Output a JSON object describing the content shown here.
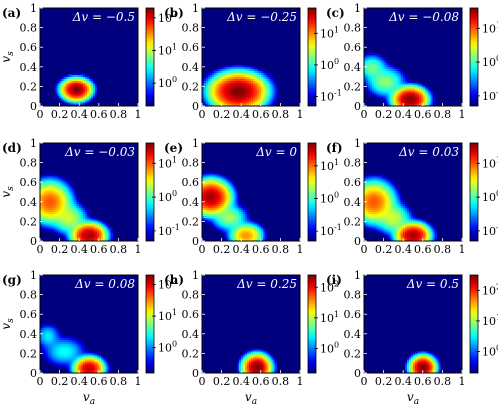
{
  "colormap": [
    "#00007f",
    "#0000ff",
    "#0080ff",
    "#00ffff",
    "#80ff80",
    "#ffff00",
    "#ff8000",
    "#ff0000",
    "#7f0000"
  ],
  "background_color": "#00007f",
  "chart_data": [
    {
      "type": "heatmap",
      "panel_label": "(a)",
      "title": "Δv = −0.5",
      "xlabel": "",
      "ylabel": "v_s",
      "xticks": [
        "0",
        "0.2",
        "0.4",
        "0.6",
        "0.8",
        "1"
      ],
      "yticks": [
        "0",
        "0.2",
        "0.4",
        "0.6",
        "0.8",
        "1"
      ],
      "xlim": [
        0,
        1
      ],
      "ylim": [
        0,
        1
      ],
      "color_scale": "log",
      "colorbar_ticks": [
        "10^2",
        "10^1",
        "10^0"
      ],
      "colorbar_exponents": [
        2,
        1,
        0
      ],
      "colorbar_range": [
        -0.7,
        2.3
      ],
      "peaks": [
        {
          "x": 0.37,
          "y": 0.17,
          "sx": 0.06,
          "sy": 0.045,
          "level": 2.3
        }
      ]
    },
    {
      "type": "heatmap",
      "panel_label": "(b)",
      "title": "Δv = −0.25",
      "xlabel": "",
      "ylabel": "",
      "xticks": [
        "0",
        "0.2",
        "0.4",
        "0.6",
        "0.8",
        "1"
      ],
      "yticks": [
        "0",
        "0.2",
        "0.4",
        "0.6",
        "0.8",
        "1"
      ],
      "xlim": [
        0,
        1
      ],
      "ylim": [
        0,
        1
      ],
      "color_scale": "log",
      "colorbar_ticks": [
        "10^1",
        "10^0",
        "10^-1"
      ],
      "colorbar_exponents": [
        1,
        0,
        -1
      ],
      "colorbar_range": [
        -1.3,
        1.8
      ],
      "peaks": [
        {
          "x": 0.37,
          "y": 0.15,
          "sx": 0.11,
          "sy": 0.075,
          "level": 1.8
        }
      ]
    },
    {
      "type": "heatmap",
      "panel_label": "(c)",
      "title": "Δv = −0.08",
      "xlabel": "",
      "ylabel": "",
      "xticks": [
        "0",
        "0.2",
        "0.4",
        "0.6",
        "0.8",
        "1"
      ],
      "yticks": [
        "0",
        "0.2",
        "0.4",
        "0.6",
        "0.8",
        "1"
      ],
      "xlim": [
        0,
        1
      ],
      "ylim": [
        0,
        1
      ],
      "color_scale": "log",
      "colorbar_ticks": [
        "10^1",
        "10^0",
        "10^-1"
      ],
      "colorbar_exponents": [
        1,
        0,
        -1
      ],
      "colorbar_range": [
        -1.3,
        1.6
      ],
      "peaks": [
        {
          "x": 0.47,
          "y": 0.07,
          "sx": 0.07,
          "sy": 0.05,
          "level": 1.6
        },
        {
          "x": 0.08,
          "y": 0.4,
          "sx": 0.07,
          "sy": 0.06,
          "level": 0.1
        },
        {
          "x": 0.22,
          "y": 0.25,
          "sx": 0.09,
          "sy": 0.07,
          "level": 0.2
        }
      ]
    },
    {
      "type": "heatmap",
      "panel_label": "(d)",
      "title": "Δv = −0.03",
      "xlabel": "",
      "ylabel": "v_s",
      "xticks": [
        "0",
        "0.2",
        "0.4",
        "0.6",
        "0.8",
        "1"
      ],
      "yticks": [
        "0",
        "0.2",
        "0.4",
        "0.6",
        "0.8",
        "1"
      ],
      "xlim": [
        0,
        1
      ],
      "ylim": [
        0,
        1
      ],
      "color_scale": "log",
      "colorbar_ticks": [
        "10^1",
        "10^0",
        "10^-1"
      ],
      "colorbar_exponents": [
        1,
        0,
        -1
      ],
      "colorbar_range": [
        -1.3,
        1.6
      ],
      "peaks": [
        {
          "x": 0.5,
          "y": 0.06,
          "sx": 0.07,
          "sy": 0.05,
          "level": 1.5
        },
        {
          "x": 0.1,
          "y": 0.4,
          "sx": 0.09,
          "sy": 0.09,
          "level": 1.0
        },
        {
          "x": 0.3,
          "y": 0.23,
          "sx": 0.08,
          "sy": 0.07,
          "level": 0.35
        }
      ]
    },
    {
      "type": "heatmap",
      "panel_label": "(e)",
      "title": "Δv = 0",
      "xlabel": "",
      "ylabel": "",
      "xticks": [
        "0",
        "0.2",
        "0.4",
        "0.6",
        "0.8",
        "1"
      ],
      "yticks": [
        "0",
        "0.2",
        "0.4",
        "0.6",
        "0.8",
        "1"
      ],
      "xlim": [
        0,
        1
      ],
      "ylim": [
        0,
        1
      ],
      "color_scale": "log",
      "colorbar_ticks": [
        "10^1",
        "10^0",
        "10^-1"
      ],
      "colorbar_exponents": [
        1,
        0,
        -1
      ],
      "colorbar_range": [
        -1.3,
        1.7
      ],
      "peaks": [
        {
          "x": 0.09,
          "y": 0.45,
          "sx": 0.08,
          "sy": 0.07,
          "level": 1.6
        },
        {
          "x": 0.45,
          "y": 0.06,
          "sx": 0.07,
          "sy": 0.05,
          "level": 0.9
        },
        {
          "x": 0.28,
          "y": 0.24,
          "sx": 0.08,
          "sy": 0.06,
          "level": 0.3
        }
      ]
    },
    {
      "type": "heatmap",
      "panel_label": "(f)",
      "title": "Δv = 0.03",
      "xlabel": "",
      "ylabel": "",
      "xticks": [
        "0",
        "0.2",
        "0.4",
        "0.6",
        "0.8",
        "1"
      ],
      "yticks": [
        "0",
        "0.2",
        "0.4",
        "0.6",
        "0.8",
        "1"
      ],
      "xlim": [
        0,
        1
      ],
      "ylim": [
        0,
        1
      ],
      "color_scale": "log",
      "colorbar_ticks": [
        "10^1",
        "10^0",
        "10^-1"
      ],
      "colorbar_exponents": [
        1,
        0,
        -1
      ],
      "colorbar_range": [
        -1.3,
        1.6
      ],
      "peaks": [
        {
          "x": 0.5,
          "y": 0.06,
          "sx": 0.07,
          "sy": 0.05,
          "level": 1.5
        },
        {
          "x": 0.1,
          "y": 0.4,
          "sx": 0.09,
          "sy": 0.09,
          "level": 1.0
        },
        {
          "x": 0.3,
          "y": 0.23,
          "sx": 0.08,
          "sy": 0.07,
          "level": 0.35
        }
      ]
    },
    {
      "type": "heatmap",
      "panel_label": "(g)",
      "title": "Δv = 0.08",
      "xlabel": "v_a",
      "ylabel": "v_s",
      "xticks": [
        "0",
        "0.2",
        "0.4",
        "0.6",
        "0.8",
        "1"
      ],
      "yticks": [
        "0",
        "0.2",
        "0.4",
        "0.6",
        "0.8",
        "1"
      ],
      "xlim": [
        0,
        1
      ],
      "ylim": [
        0,
        1
      ],
      "color_scale": "log",
      "colorbar_ticks": [
        "10^2",
        "10^1",
        "10^0"
      ],
      "colorbar_exponents": [
        2,
        1,
        0
      ],
      "colorbar_range": [
        -0.8,
        2.3
      ],
      "peaks": [
        {
          "x": 0.5,
          "y": 0.05,
          "sx": 0.06,
          "sy": 0.045,
          "level": 2.1
        },
        {
          "x": 0.08,
          "y": 0.38,
          "sx": 0.06,
          "sy": 0.06,
          "level": 0.3
        },
        {
          "x": 0.25,
          "y": 0.22,
          "sx": 0.1,
          "sy": 0.07,
          "level": 0.4
        }
      ]
    },
    {
      "type": "heatmap",
      "panel_label": "(h)",
      "title": "Δv = 0.25",
      "xlabel": "v_a",
      "ylabel": "",
      "xticks": [
        "0",
        "0.2",
        "0.4",
        "0.6",
        "0.8",
        "1"
      ],
      "yticks": [
        "0",
        "0.2",
        "0.4",
        "0.6",
        "0.8",
        "1"
      ],
      "xlim": [
        0,
        1
      ],
      "ylim": [
        0,
        1
      ],
      "color_scale": "log",
      "colorbar_ticks": [
        "10^2",
        "10^1",
        "10^0"
      ],
      "colorbar_exponents": [
        2,
        1,
        0
      ],
      "colorbar_range": [
        -0.8,
        2.4
      ],
      "peaks": [
        {
          "x": 0.56,
          "y": 0.06,
          "sx": 0.055,
          "sy": 0.05,
          "level": 2.4
        }
      ]
    },
    {
      "type": "heatmap",
      "panel_label": "(i)",
      "title": "Δv = 0.5",
      "xlabel": "v_a",
      "ylabel": "",
      "xticks": [
        "0",
        "0.2",
        "0.4",
        "0.6",
        "0.8",
        "1"
      ],
      "yticks": [
        "0",
        "0.2",
        "0.4",
        "0.6",
        "0.8",
        "1"
      ],
      "xlim": [
        0,
        1
      ],
      "ylim": [
        0,
        1
      ],
      "color_scale": "log",
      "colorbar_ticks": [
        "10^2",
        "10^1",
        "10^0"
      ],
      "colorbar_exponents": [
        2,
        1,
        0
      ],
      "colorbar_range": [
        -0.7,
        2.5
      ],
      "peaks": [
        {
          "x": 0.6,
          "y": 0.06,
          "sx": 0.05,
          "sy": 0.045,
          "level": 2.5
        }
      ]
    }
  ]
}
